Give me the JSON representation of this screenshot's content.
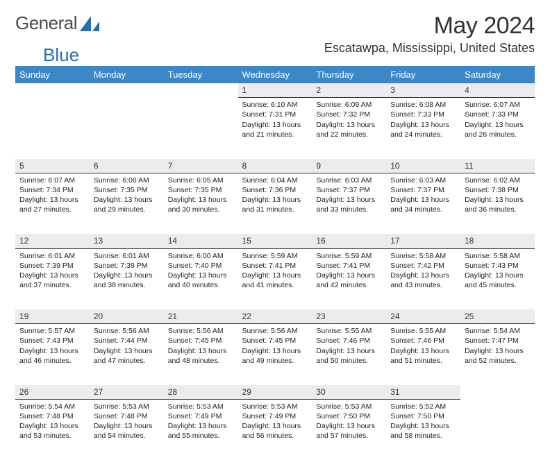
{
  "brand": {
    "name_part1": "General",
    "name_part2": "Blue",
    "logo_color": "#2a6cb0"
  },
  "title": "May 2024",
  "location": "Escatawpa, Mississippi, United States",
  "header_bg": "#3b87c8",
  "daynum_bg": "#ececec",
  "daynum_border": "#333333",
  "weekdays": [
    "Sunday",
    "Monday",
    "Tuesday",
    "Wednesday",
    "Thursday",
    "Friday",
    "Saturday"
  ],
  "weeks": [
    [
      null,
      null,
      null,
      {
        "n": "1",
        "sr": "6:10 AM",
        "ss": "7:31 PM",
        "dl": "13 hours and 21 minutes."
      },
      {
        "n": "2",
        "sr": "6:09 AM",
        "ss": "7:32 PM",
        "dl": "13 hours and 22 minutes."
      },
      {
        "n": "3",
        "sr": "6:08 AM",
        "ss": "7:33 PM",
        "dl": "13 hours and 24 minutes."
      },
      {
        "n": "4",
        "sr": "6:07 AM",
        "ss": "7:33 PM",
        "dl": "13 hours and 26 minutes."
      }
    ],
    [
      {
        "n": "5",
        "sr": "6:07 AM",
        "ss": "7:34 PM",
        "dl": "13 hours and 27 minutes."
      },
      {
        "n": "6",
        "sr": "6:06 AM",
        "ss": "7:35 PM",
        "dl": "13 hours and 29 minutes."
      },
      {
        "n": "7",
        "sr": "6:05 AM",
        "ss": "7:35 PM",
        "dl": "13 hours and 30 minutes."
      },
      {
        "n": "8",
        "sr": "6:04 AM",
        "ss": "7:36 PM",
        "dl": "13 hours and 31 minutes."
      },
      {
        "n": "9",
        "sr": "6:03 AM",
        "ss": "7:37 PM",
        "dl": "13 hours and 33 minutes."
      },
      {
        "n": "10",
        "sr": "6:03 AM",
        "ss": "7:37 PM",
        "dl": "13 hours and 34 minutes."
      },
      {
        "n": "11",
        "sr": "6:02 AM",
        "ss": "7:38 PM",
        "dl": "13 hours and 36 minutes."
      }
    ],
    [
      {
        "n": "12",
        "sr": "6:01 AM",
        "ss": "7:39 PM",
        "dl": "13 hours and 37 minutes."
      },
      {
        "n": "13",
        "sr": "6:01 AM",
        "ss": "7:39 PM",
        "dl": "13 hours and 38 minutes."
      },
      {
        "n": "14",
        "sr": "6:00 AM",
        "ss": "7:40 PM",
        "dl": "13 hours and 40 minutes."
      },
      {
        "n": "15",
        "sr": "5:59 AM",
        "ss": "7:41 PM",
        "dl": "13 hours and 41 minutes."
      },
      {
        "n": "16",
        "sr": "5:59 AM",
        "ss": "7:41 PM",
        "dl": "13 hours and 42 minutes."
      },
      {
        "n": "17",
        "sr": "5:58 AM",
        "ss": "7:42 PM",
        "dl": "13 hours and 43 minutes."
      },
      {
        "n": "18",
        "sr": "5:58 AM",
        "ss": "7:43 PM",
        "dl": "13 hours and 45 minutes."
      }
    ],
    [
      {
        "n": "19",
        "sr": "5:57 AM",
        "ss": "7:43 PM",
        "dl": "13 hours and 46 minutes."
      },
      {
        "n": "20",
        "sr": "5:56 AM",
        "ss": "7:44 PM",
        "dl": "13 hours and 47 minutes."
      },
      {
        "n": "21",
        "sr": "5:56 AM",
        "ss": "7:45 PM",
        "dl": "13 hours and 48 minutes."
      },
      {
        "n": "22",
        "sr": "5:56 AM",
        "ss": "7:45 PM",
        "dl": "13 hours and 49 minutes."
      },
      {
        "n": "23",
        "sr": "5:55 AM",
        "ss": "7:46 PM",
        "dl": "13 hours and 50 minutes."
      },
      {
        "n": "24",
        "sr": "5:55 AM",
        "ss": "7:46 PM",
        "dl": "13 hours and 51 minutes."
      },
      {
        "n": "25",
        "sr": "5:54 AM",
        "ss": "7:47 PM",
        "dl": "13 hours and 52 minutes."
      }
    ],
    [
      {
        "n": "26",
        "sr": "5:54 AM",
        "ss": "7:48 PM",
        "dl": "13 hours and 53 minutes."
      },
      {
        "n": "27",
        "sr": "5:53 AM",
        "ss": "7:48 PM",
        "dl": "13 hours and 54 minutes."
      },
      {
        "n": "28",
        "sr": "5:53 AM",
        "ss": "7:49 PM",
        "dl": "13 hours and 55 minutes."
      },
      {
        "n": "29",
        "sr": "5:53 AM",
        "ss": "7:49 PM",
        "dl": "13 hours and 56 minutes."
      },
      {
        "n": "30",
        "sr": "5:53 AM",
        "ss": "7:50 PM",
        "dl": "13 hours and 57 minutes."
      },
      {
        "n": "31",
        "sr": "5:52 AM",
        "ss": "7:50 PM",
        "dl": "13 hours and 58 minutes."
      },
      null
    ]
  ],
  "labels": {
    "sunrise": "Sunrise:",
    "sunset": "Sunset:",
    "daylight": "Daylight:"
  }
}
